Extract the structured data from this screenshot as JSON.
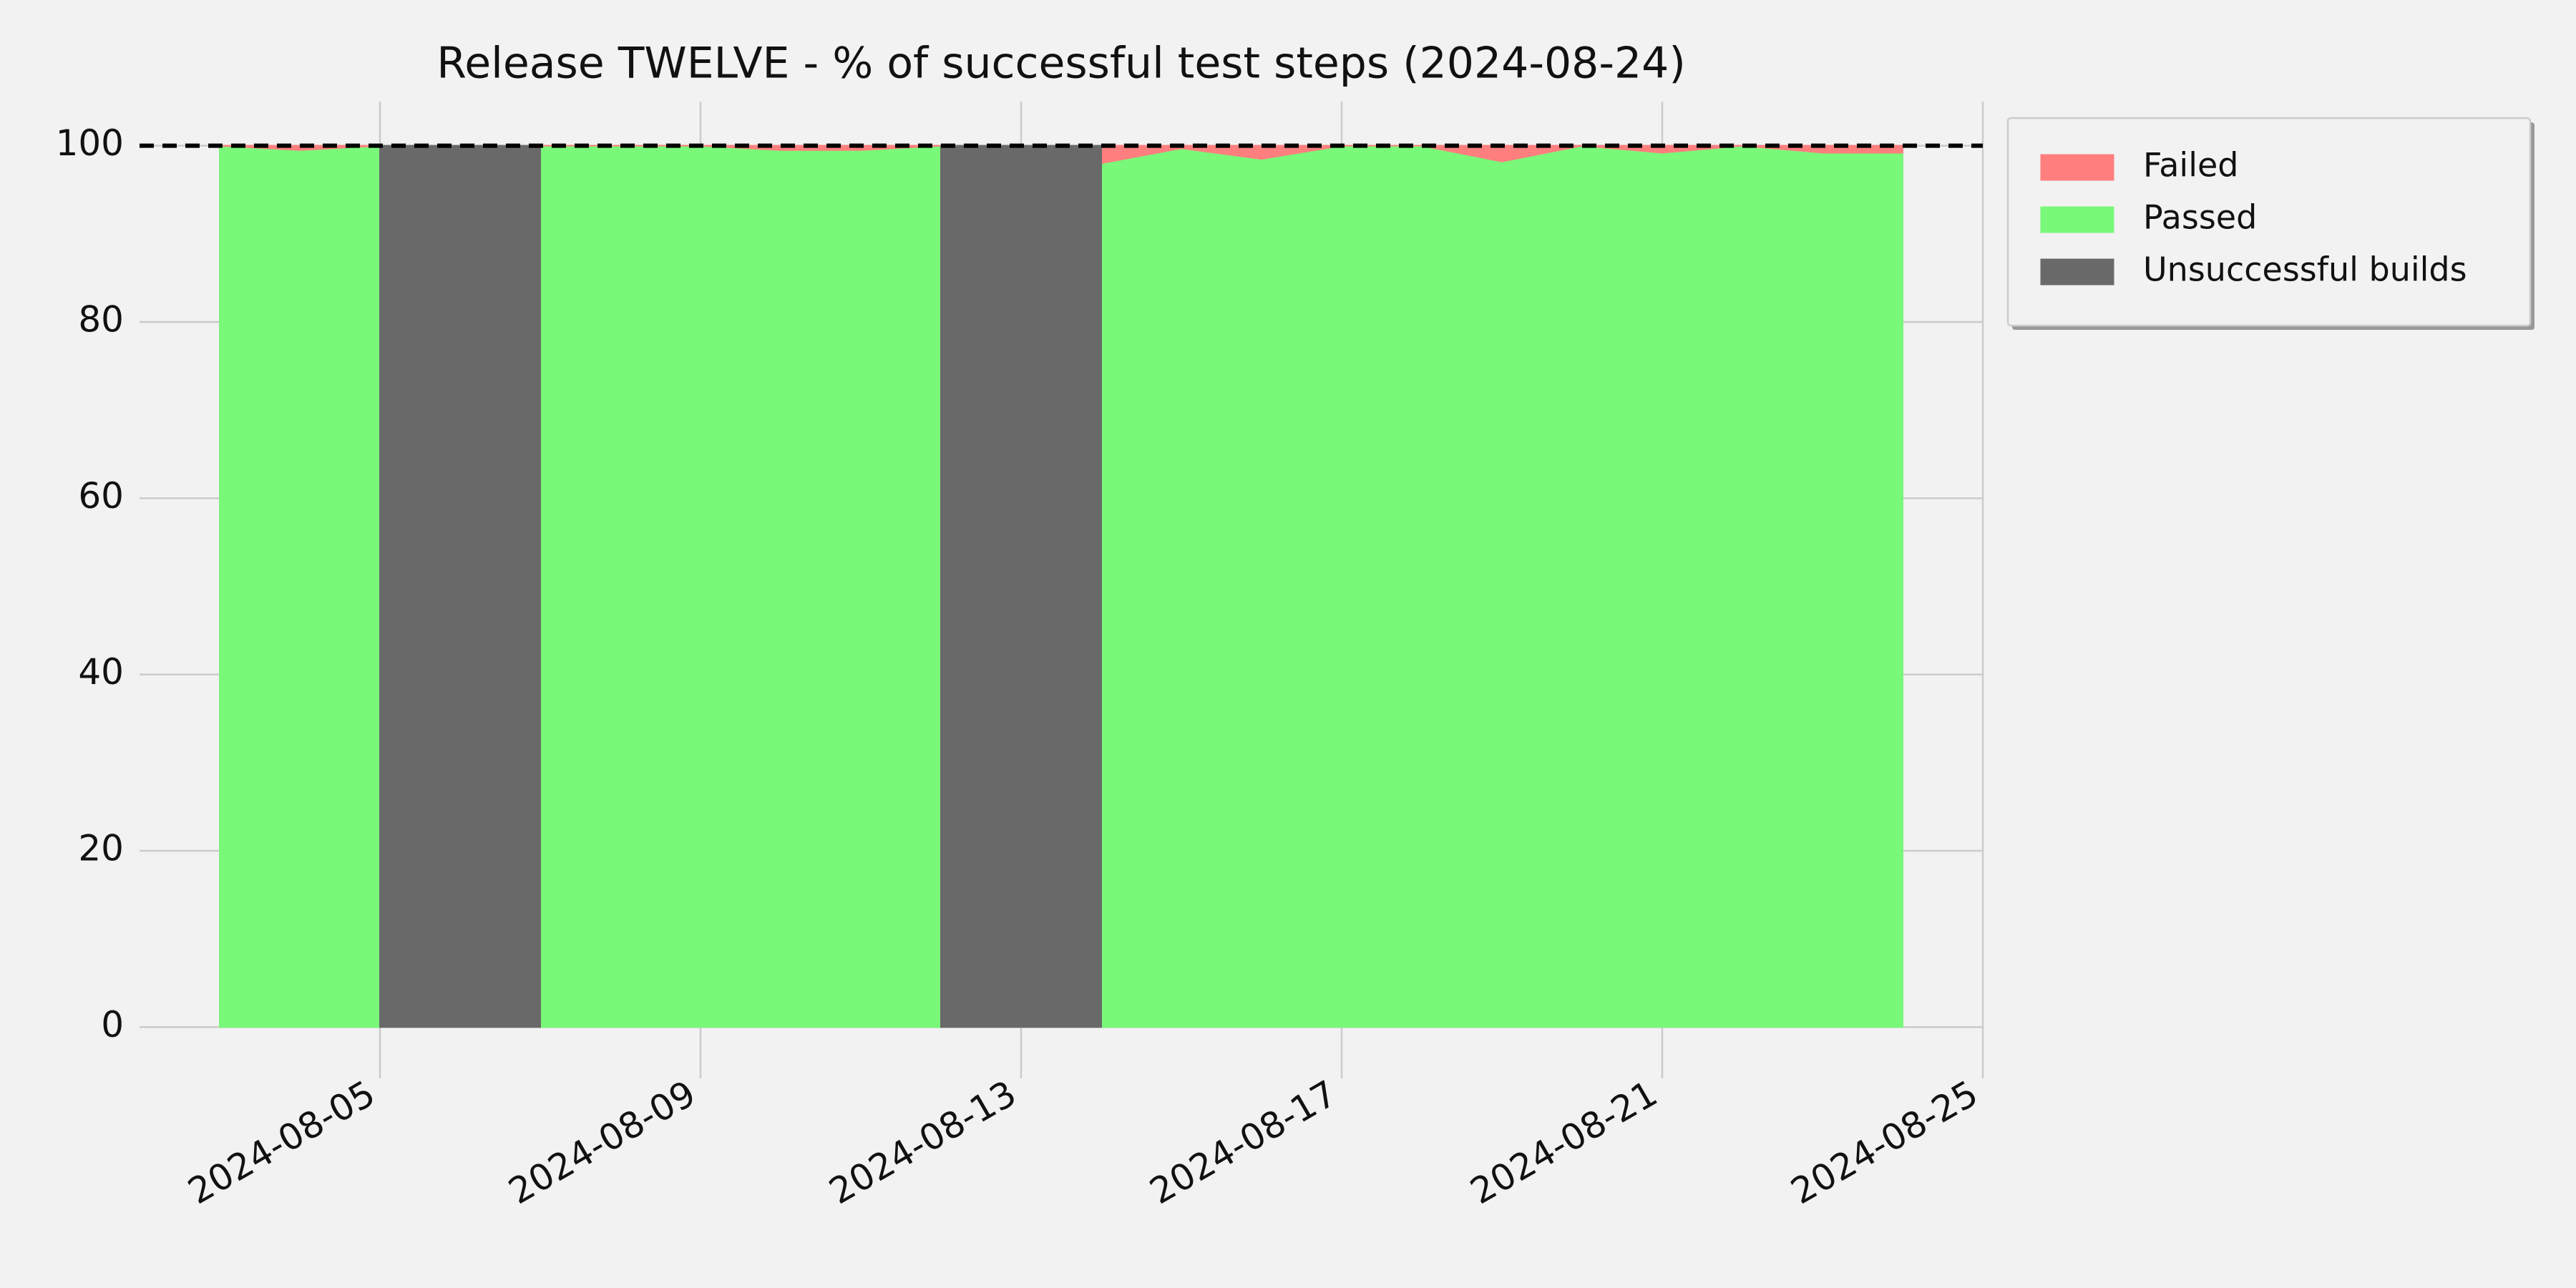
{
  "chart_data": {
    "type": "area",
    "title": "Release TWELVE - % of successful test steps (2024-08-24)",
    "x": [
      "2024-08-03",
      "2024-08-04",
      "2024-08-05",
      "2024-08-06",
      "2024-08-07",
      "2024-08-08",
      "2024-08-09",
      "2024-08-10",
      "2024-08-11",
      "2024-08-12",
      "2024-08-13",
      "2024-08-14",
      "2024-08-15",
      "2024-08-16",
      "2024-08-17",
      "2024-08-18",
      "2024-08-19",
      "2024-08-20",
      "2024-08-21",
      "2024-08-22",
      "2024-08-23",
      "2024-08-24"
    ],
    "series": [
      {
        "name": "Failed",
        "color": "#ff7f7f",
        "stack": true,
        "values": [
          0,
          0.5,
          0,
          null,
          0,
          0,
          0,
          0.5,
          0.5,
          0,
          null,
          2,
          0.3,
          1.5,
          0,
          0,
          1.8,
          0,
          0.8,
          0,
          0.8,
          0.8
        ]
      },
      {
        "name": "Passed",
        "color": "#79f879",
        "stack": true,
        "values": [
          100,
          99.5,
          100,
          null,
          100,
          100,
          100,
          99.5,
          99.5,
          100,
          null,
          98,
          99.7,
          98.5,
          100,
          100,
          98.2,
          100,
          99.2,
          100,
          99.2,
          99.2
        ]
      },
      {
        "name": "Unsuccessful builds",
        "color": "#696969",
        "stack": false,
        "values": [
          null,
          null,
          100,
          100,
          100,
          null,
          null,
          null,
          null,
          100,
          100,
          100,
          null,
          null,
          null,
          null,
          null,
          null,
          null,
          null,
          null,
          null
        ]
      }
    ],
    "reference_line": 100,
    "xlim": [
      "2024-08-02",
      "2024-08-25"
    ],
    "xticks": [
      "2024-08-05",
      "2024-08-09",
      "2024-08-13",
      "2024-08-17",
      "2024-08-21",
      "2024-08-25"
    ],
    "ylim": [
      -5,
      105
    ],
    "yticks": [
      0,
      20,
      40,
      60,
      80,
      100
    ],
    "grid": true,
    "legend": "outside-upper-right"
  }
}
